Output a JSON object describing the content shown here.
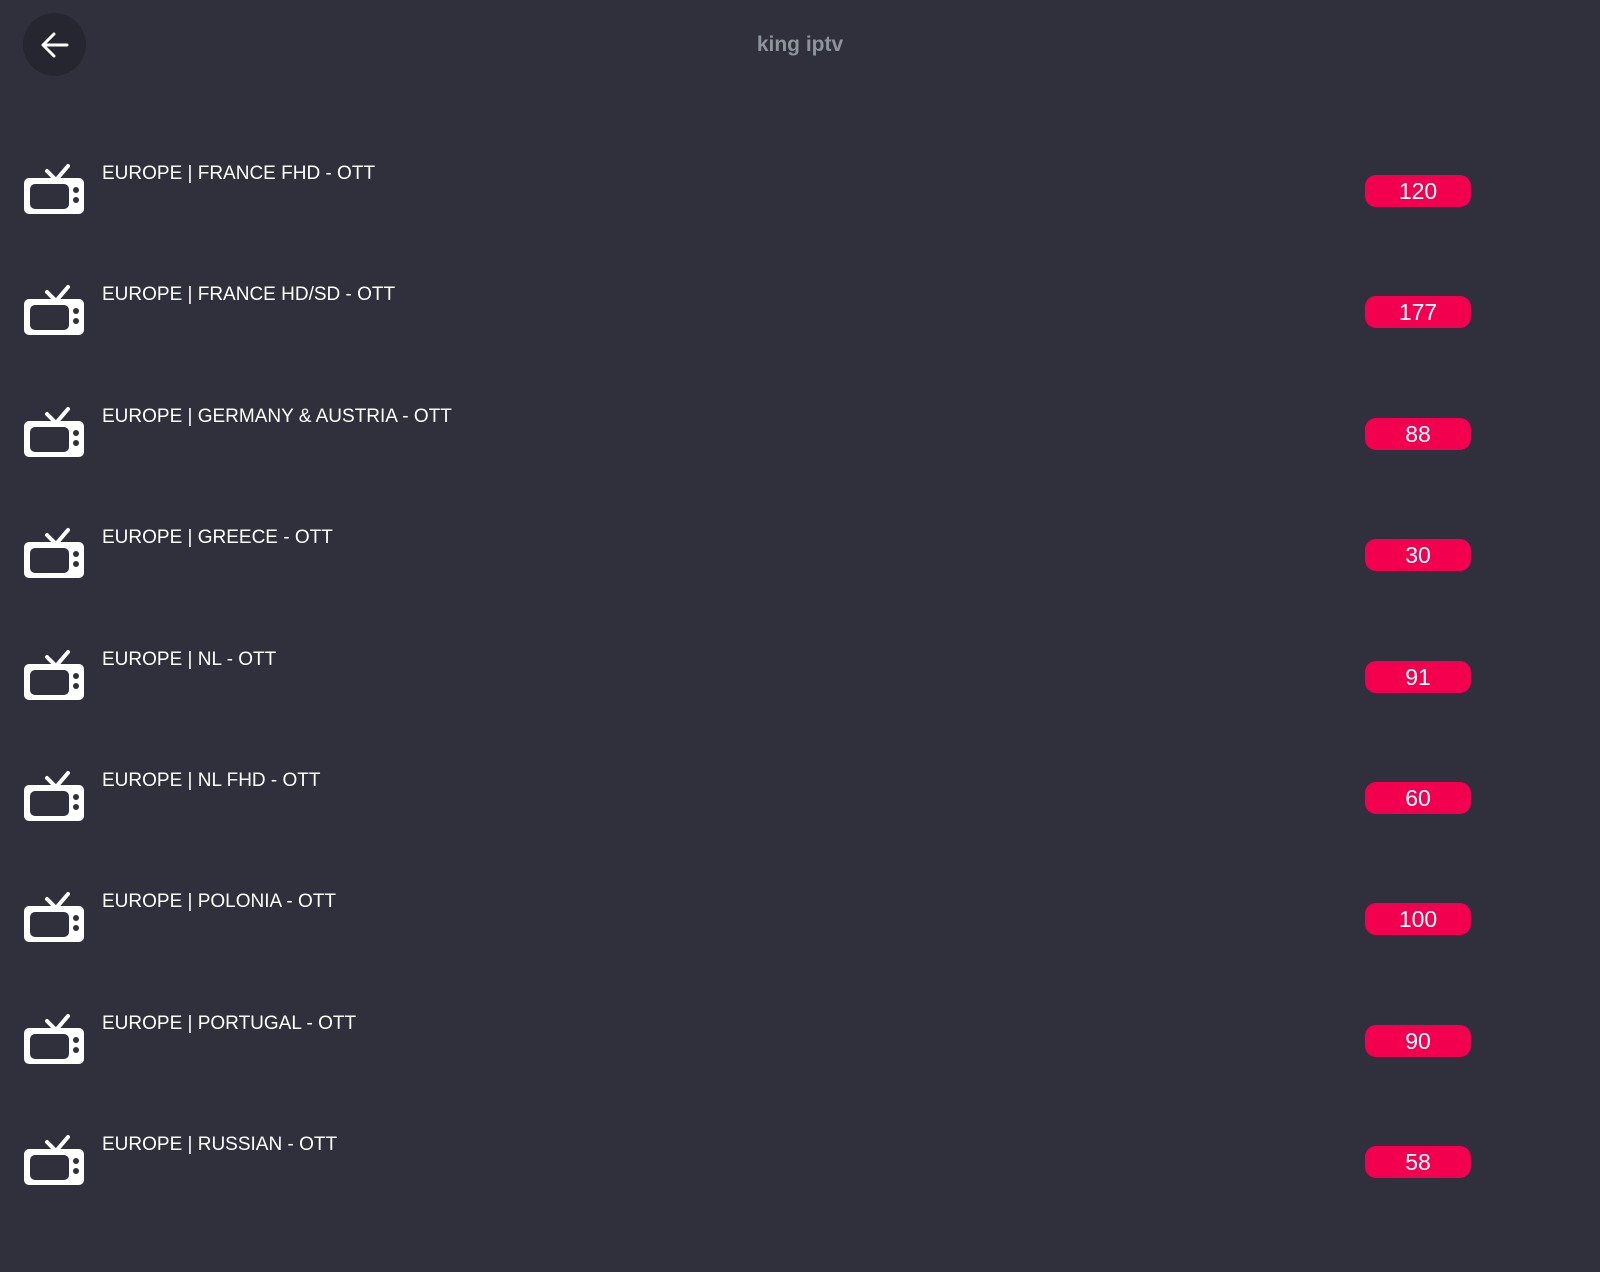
{
  "header": {
    "title": "king iptv",
    "back_icon": "arrow-left-icon"
  },
  "colors": {
    "background": "#2f303c",
    "badge": "#f2004f"
  },
  "categories": [
    {
      "name": "EUROPE | FRANCE FHD - OTT",
      "count": "120"
    },
    {
      "name": "EUROPE | FRANCE HD/SD - OTT",
      "count": "177"
    },
    {
      "name": "EUROPE | GERMANY & AUSTRIA - OTT",
      "count": "88"
    },
    {
      "name": "EUROPE | GREECE - OTT",
      "count": "30"
    },
    {
      "name": "EUROPE | NL - OTT",
      "count": "91"
    },
    {
      "name": "EUROPE | NL FHD - OTT",
      "count": "60"
    },
    {
      "name": "EUROPE | POLONIA - OTT",
      "count": "100"
    },
    {
      "name": "EUROPE | PORTUGAL - OTT",
      "count": "90"
    },
    {
      "name": "EUROPE | RUSSIAN - OTT",
      "count": "58"
    }
  ]
}
